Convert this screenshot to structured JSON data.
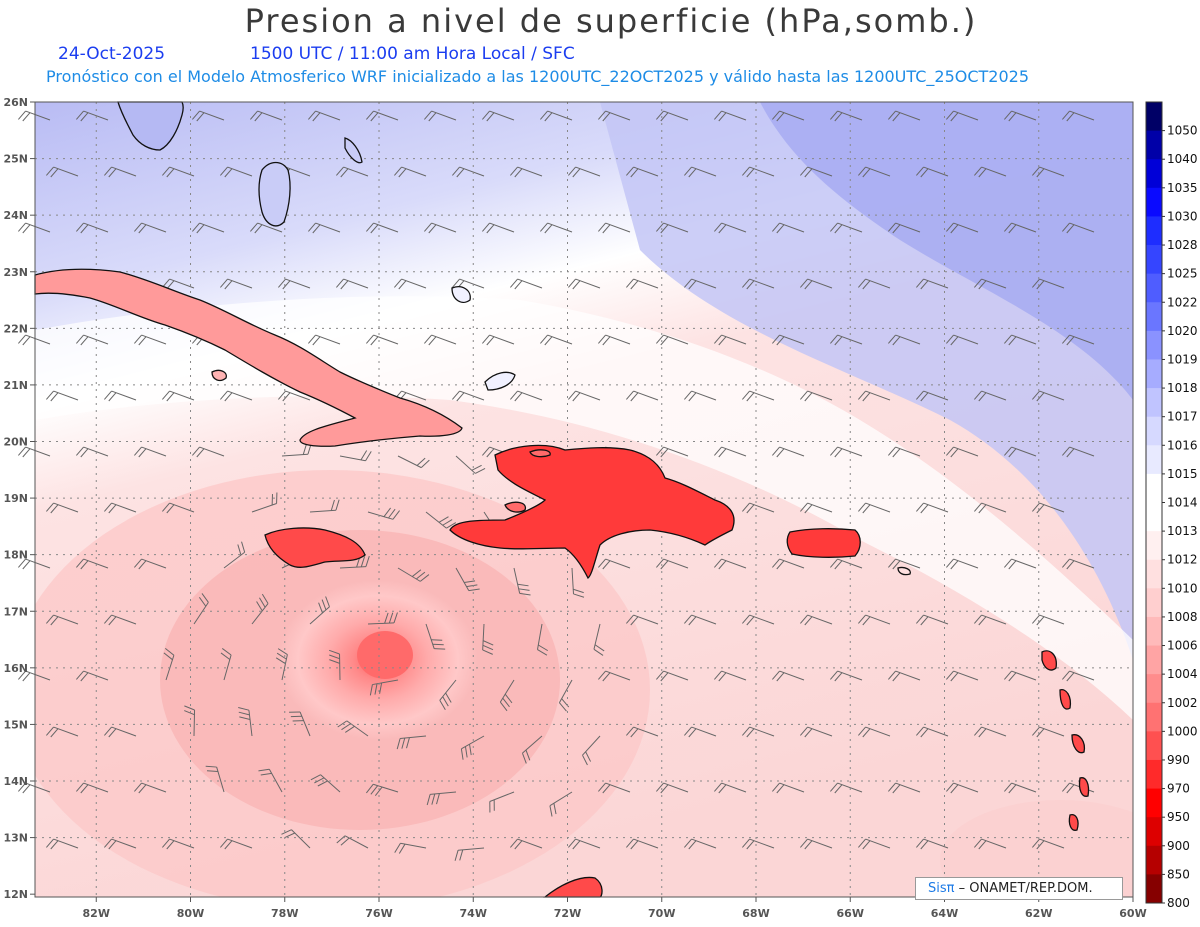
{
  "header": {
    "title": "Presion a nivel de superficie (hPa,somb.)",
    "date": "24-Oct-2025",
    "valid_time": "1500 UTC / 11:00 am Hora Local / SFC",
    "model_info": "Pronóstico con el Modelo Atmosferico WRF inicializado a las 1200UTC_22OCT2025 y válido hasta las  1200UTC_25OCT2025"
  },
  "map": {
    "lat_labels": [
      "26N",
      "25N",
      "24N",
      "23N",
      "22N",
      "21N",
      "20N",
      "19N",
      "18N",
      "17N",
      "16N",
      "15N",
      "14N",
      "13N",
      "12N"
    ],
    "lon_labels": [
      "82W",
      "80W",
      "78W",
      "76W",
      "74W",
      "72W",
      "70W",
      "68W",
      "66W",
      "64W",
      "62W",
      "60W"
    ],
    "colorbar": {
      "levels": [
        "1050",
        "1040",
        "1035",
        "1030",
        "1028",
        "1025",
        "1022",
        "1020",
        "1019",
        "1018",
        "1017",
        "1016",
        "1015",
        "1014",
        "1013",
        "1012",
        "1010",
        "1008",
        "1006",
        "1004",
        "1002",
        "1000",
        "990",
        "970",
        "950",
        "900",
        "850",
        "800"
      ],
      "colors": [
        "#000066",
        "#0000a8",
        "#0000d8",
        "#0a0aff",
        "#1e2dff",
        "#3545ff",
        "#4f5dff",
        "#6a76ff",
        "#8a92ff",
        "#a6acff",
        "#c0c4ff",
        "#d6d9ff",
        "#e8eaff",
        "#ffffff",
        "#ffffff",
        "#fff0f0",
        "#ffe0e0",
        "#ffcfcf",
        "#ffbaba",
        "#ffa4a4",
        "#ff8c8c",
        "#ff7272",
        "#ff5050",
        "#ff2a2a",
        "#ff0000",
        "#dd0000",
        "#b50000",
        "#860000"
      ]
    }
  },
  "credit": {
    "brand": "Sisπ",
    "org": "– ONAMET/REP.DOM."
  }
}
